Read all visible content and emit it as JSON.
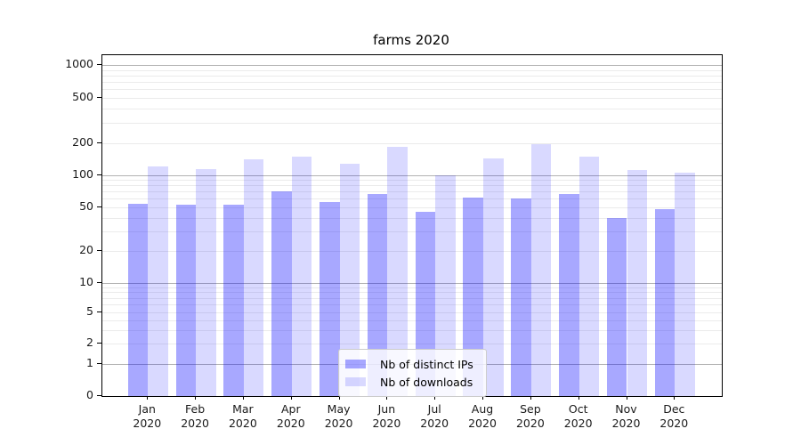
{
  "chart_data": {
    "type": "bar",
    "title": "farms 2020",
    "categories": [
      "Jan 2020",
      "Feb 2020",
      "Mar 2020",
      "Apr 2020",
      "May 2020",
      "Jun 2020",
      "Jul 2020",
      "Aug 2020",
      "Sep 2020",
      "Oct 2020",
      "Nov 2020",
      "Dec 2020"
    ],
    "series": [
      {
        "name": "Nb of distinct IPs",
        "color": "rgba(0,0,255,0.34)",
        "values": [
          54,
          53,
          53,
          70,
          56,
          66,
          45,
          62,
          60,
          67,
          40,
          48
        ]
      },
      {
        "name": "Nb of downloads",
        "color": "rgba(0,0,255,0.15)",
        "values": [
          121,
          114,
          140,
          148,
          129,
          183,
          100,
          144,
          194,
          150,
          112,
          105
        ]
      }
    ],
    "xlabel": "",
    "ylabel": "",
    "yscale": "log (linear segment below 1, includes 0)",
    "ylim": [
      0,
      1200
    ],
    "y_ticks": [
      0,
      1,
      2,
      5,
      10,
      20,
      50,
      100,
      200,
      500,
      1000
    ],
    "grid": true,
    "legend_position": "lower center",
    "colors": {
      "bar_distinct_ips_rendered": "#aaaaf5",
      "bar_downloads_rendered": "#d9d9f8",
      "major_gridline": "#b2b2b2",
      "minor_gridline": "#ebebeb",
      "axis": "#000000"
    }
  }
}
